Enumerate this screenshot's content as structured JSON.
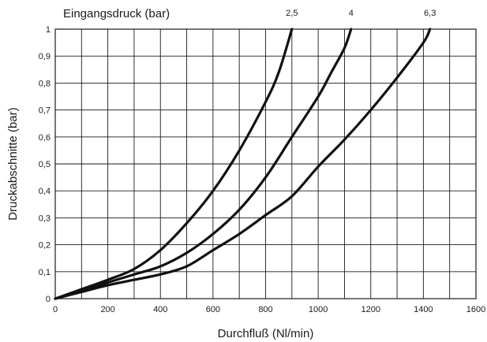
{
  "chart_data": {
    "type": "line",
    "title": "Eingangsdruck (bar)",
    "xlabel": "Durchfluß (Nl/min)",
    "ylabel": "Druckabschnitte (bar)",
    "xlim": [
      0,
      1600
    ],
    "ylim": [
      0,
      1
    ],
    "x_ticks": [
      0,
      200,
      400,
      600,
      800,
      1000,
      1200,
      1400,
      1600
    ],
    "x_tick_labels": [
      "0",
      "200",
      "400",
      "600",
      "800",
      "1000",
      "1200",
      "1400",
      "1600"
    ],
    "y_ticks": [
      0,
      0.1,
      0.2,
      0.3,
      0.4,
      0.5,
      0.6,
      0.7,
      0.8,
      0.9,
      1
    ],
    "y_tick_labels": [
      "0",
      "0,1",
      "0,2",
      "0,3",
      "0,4",
      "0,5",
      "0,6",
      "0,7",
      "0,8",
      "0,9",
      "1"
    ],
    "grid": true,
    "legend": "none",
    "series": [
      {
        "name": "2,5",
        "points": [
          [
            0,
            0
          ],
          [
            100,
            0.035
          ],
          [
            200,
            0.07
          ],
          [
            300,
            0.11
          ],
          [
            400,
            0.18
          ],
          [
            500,
            0.28
          ],
          [
            600,
            0.4
          ],
          [
            700,
            0.55
          ],
          [
            800,
            0.73
          ],
          [
            850,
            0.84
          ],
          [
            900,
            1.0
          ]
        ]
      },
      {
        "name": "4",
        "points": [
          [
            0,
            0
          ],
          [
            100,
            0.03
          ],
          [
            200,
            0.06
          ],
          [
            300,
            0.09
          ],
          [
            400,
            0.12
          ],
          [
            500,
            0.17
          ],
          [
            600,
            0.24
          ],
          [
            700,
            0.33
          ],
          [
            800,
            0.45
          ],
          [
            900,
            0.6
          ],
          [
            1000,
            0.75
          ],
          [
            1050,
            0.84
          ],
          [
            1100,
            0.93
          ],
          [
            1125,
            1.0
          ]
        ]
      },
      {
        "name": "6,3",
        "points": [
          [
            0,
            0
          ],
          [
            100,
            0.025
          ],
          [
            200,
            0.05
          ],
          [
            300,
            0.07
          ],
          [
            400,
            0.09
          ],
          [
            500,
            0.12
          ],
          [
            600,
            0.18
          ],
          [
            700,
            0.24
          ],
          [
            800,
            0.31
          ],
          [
            900,
            0.38
          ],
          [
            1000,
            0.49
          ],
          [
            1100,
            0.59
          ],
          [
            1200,
            0.7
          ],
          [
            1300,
            0.82
          ],
          [
            1400,
            0.95
          ],
          [
            1425,
            1.0
          ]
        ]
      }
    ]
  }
}
